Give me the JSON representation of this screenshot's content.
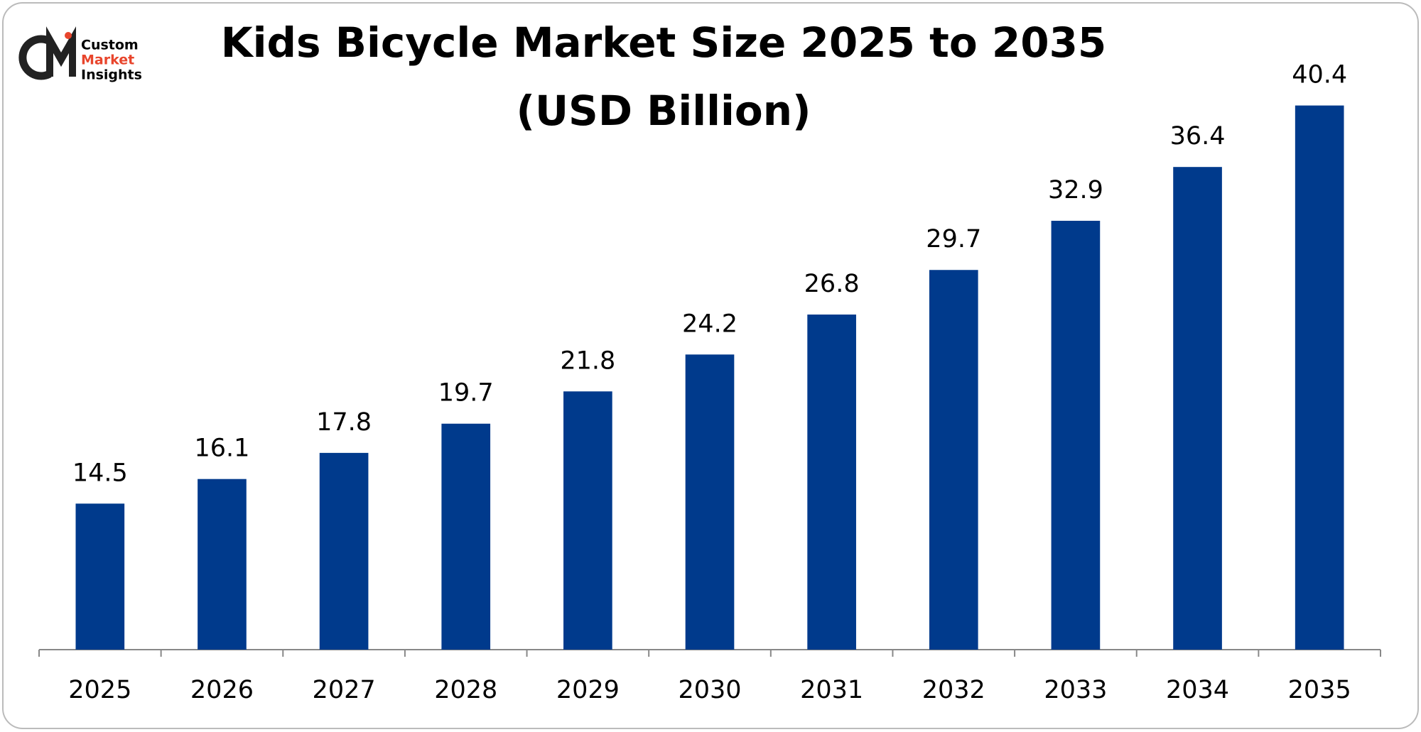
{
  "chart_data": {
    "type": "bar",
    "title": [
      "Kids Bicycle Market Size 2025 to 2035",
      "(USD Billion)"
    ],
    "logo_text": [
      "Custom",
      "Market",
      "Insights"
    ],
    "categories": [
      "2025",
      "2026",
      "2027",
      "2028",
      "2029",
      "2030",
      "2031",
      "2032",
      "2033",
      "2034",
      "2035"
    ],
    "values": [
      14.5,
      16.1,
      17.8,
      19.7,
      21.8,
      24.2,
      26.8,
      29.7,
      32.9,
      36.4,
      40.4
    ],
    "color": "#003a8c",
    "ylim": [
      5,
      45
    ]
  }
}
